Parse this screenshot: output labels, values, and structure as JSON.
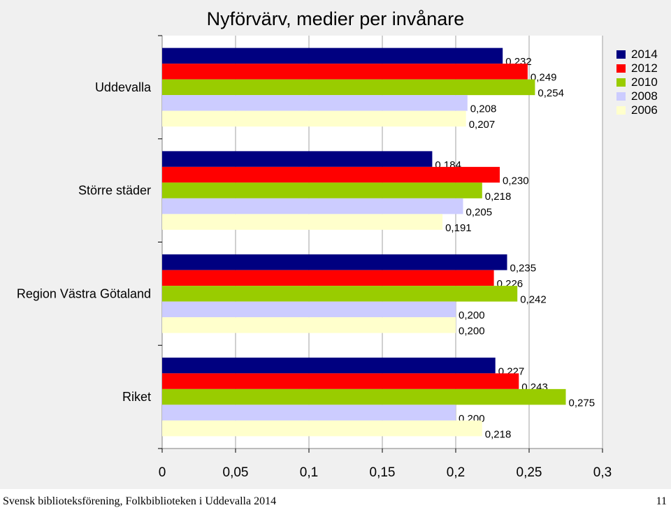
{
  "chart_data": {
    "type": "bar",
    "orientation": "horizontal",
    "title": "Nyförvärv, medier per invånare",
    "categories": [
      "Uddevalla",
      "Större städer",
      "Region Västra Götaland",
      "Riket"
    ],
    "series": [
      {
        "name": "2014",
        "color": "#000080",
        "values": [
          0.232,
          0.184,
          0.235,
          0.227
        ],
        "labels": [
          "0,232",
          "0,184",
          "0,235",
          "0,227"
        ]
      },
      {
        "name": "2012",
        "color": "#ff0000",
        "values": [
          0.249,
          0.23,
          0.226,
          0.243
        ],
        "labels": [
          "0,249",
          "0,230",
          "0,226",
          "0,243"
        ]
      },
      {
        "name": "2010",
        "color": "#99cc00",
        "values": [
          0.254,
          0.218,
          0.242,
          0.275
        ],
        "labels": [
          "0,254",
          "0,218",
          "0,242",
          "0,275"
        ]
      },
      {
        "name": "2008",
        "color": "#ccccff",
        "values": [
          0.208,
          0.205,
          0.2,
          0.2
        ],
        "labels": [
          "0,208",
          "0,205",
          "0,200",
          "0,200"
        ]
      },
      {
        "name": "2006",
        "color": "#ffffcc",
        "values": [
          0.207,
          0.191,
          0.2,
          0.218
        ],
        "labels": [
          "0,207",
          "0,191",
          "0,200",
          "0,218"
        ]
      }
    ],
    "x_ticks": [
      0,
      0.05,
      0.1,
      0.15,
      0.2,
      0.25,
      0.3
    ],
    "x_tick_labels": [
      "0",
      "0,05",
      "0,1",
      "0,15",
      "0,2",
      "0,25",
      "0,3"
    ],
    "xlim": [
      0,
      0.3
    ],
    "grid": true,
    "legend_position": "top-right"
  },
  "footer": {
    "source": "Svensk biblioteksförening, Folkbiblioteken i Uddevalla 2014",
    "page_number": "11"
  }
}
